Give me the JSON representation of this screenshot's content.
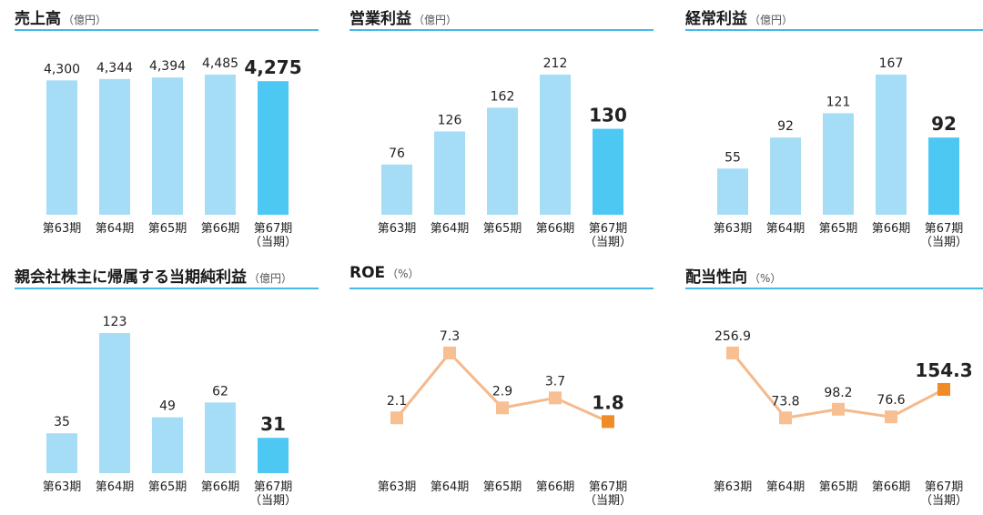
{
  "chart_data": [
    {
      "type": "bar",
      "title": "売上高",
      "unit": "（億円）",
      "categories": [
        "第63期",
        "第64期",
        "第65期",
        "第66期",
        "第67期"
      ],
      "current_note": "（当期）",
      "values": [
        4300,
        4344,
        4394,
        4485,
        4275
      ],
      "value_labels": [
        "4,300",
        "4,344",
        "4,394",
        "4,485",
        "4,275"
      ],
      "ylim": [
        0,
        4485
      ]
    },
    {
      "type": "bar",
      "title": "営業利益",
      "unit": "（億円）",
      "categories": [
        "第63期",
        "第64期",
        "第65期",
        "第66期",
        "第67期"
      ],
      "current_note": "（当期）",
      "values": [
        76,
        126,
        162,
        212,
        130
      ],
      "value_labels": [
        "76",
        "126",
        "162",
        "212",
        "130"
      ],
      "ylim": [
        0,
        212
      ]
    },
    {
      "type": "bar",
      "title": "経常利益",
      "unit": "（億円）",
      "categories": [
        "第63期",
        "第64期",
        "第65期",
        "第66期",
        "第67期"
      ],
      "current_note": "（当期）",
      "values": [
        55,
        92,
        121,
        167,
        92
      ],
      "value_labels": [
        "55",
        "92",
        "121",
        "167",
        "92"
      ],
      "ylim": [
        0,
        167
      ]
    },
    {
      "type": "bar",
      "title": "親会社株主に帰属する当期純利益",
      "unit": "（億円）",
      "categories": [
        "第63期",
        "第64期",
        "第65期",
        "第66期",
        "第67期"
      ],
      "current_note": "（当期）",
      "values": [
        35,
        123,
        49,
        62,
        31
      ],
      "value_labels": [
        "35",
        "123",
        "49",
        "62",
        "31"
      ],
      "ylim": [
        0,
        123
      ]
    },
    {
      "type": "line",
      "title": "ROE",
      "unit": "（%）",
      "categories": [
        "第63期",
        "第64期",
        "第65期",
        "第66期",
        "第67期"
      ],
      "current_note": "（当期）",
      "values": [
        2.1,
        7.3,
        2.9,
        3.7,
        1.8
      ],
      "value_labels": [
        "2.1",
        "7.3",
        "2.9",
        "3.7",
        "1.8"
      ],
      "ylim": [
        0,
        7.3
      ]
    },
    {
      "type": "line",
      "title": "配当性向",
      "unit": "（%）",
      "categories": [
        "第63期",
        "第64期",
        "第65期",
        "第66期",
        "第67期"
      ],
      "current_note": "（当期）",
      "values": [
        256.9,
        73.8,
        98.2,
        76.6,
        154.3
      ],
      "value_labels": [
        "256.9",
        "73.8",
        "98.2",
        "76.6",
        "154.3"
      ],
      "ylim": [
        0,
        256.9
      ]
    }
  ],
  "colors": {
    "bar_past": "#a6ddf6",
    "bar_current": "#4cc8f2",
    "line": "#f5b98c",
    "marker_past": "#f7bf92",
    "marker_current": "#ef8c27",
    "rule": "#45b9e8"
  }
}
